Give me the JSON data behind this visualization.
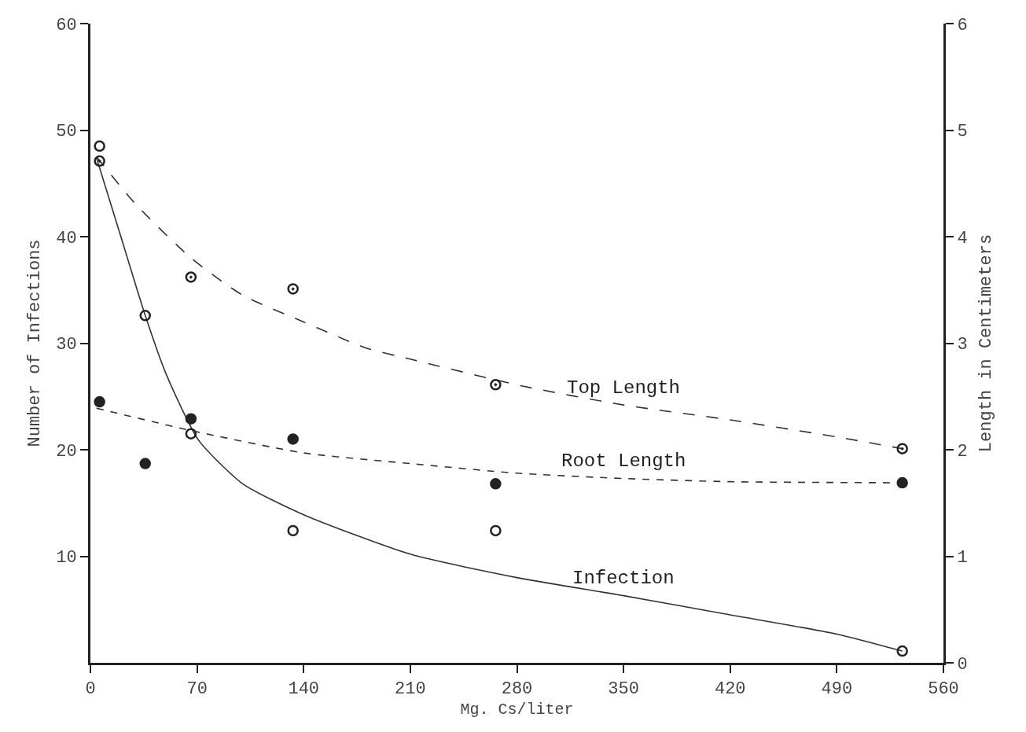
{
  "chart_data": {
    "type": "scatter",
    "xlabel": "Mg. Cs/liter",
    "ylabel": "Number of Infections",
    "y2label": "Length in Centimeters",
    "xlim": [
      0,
      560
    ],
    "xticks": [
      0,
      70,
      140,
      210,
      280,
      350,
      420,
      490,
      560
    ],
    "ylim": [
      0,
      60
    ],
    "yticks": [
      10,
      20,
      30,
      40,
      50,
      60
    ],
    "y2lim": [
      0,
      6
    ],
    "y2ticks": [
      0,
      1,
      2,
      3,
      4,
      5,
      6
    ],
    "grid": false,
    "legend": false,
    "series": [
      {
        "marker": "circle-open",
        "color": "#222222",
        "x": [
          6,
          36,
          66,
          133,
          266,
          533
        ],
        "values": [
          48.5,
          32.6,
          21.5,
          12.4,
          12.4,
          1.1
        ]
      },
      {
        "marker": "circle-open-dot",
        "color": "#222222",
        "axis": "y2",
        "x": [
          6,
          66,
          133,
          266,
          533
        ],
        "values": [
          4.71,
          3.62,
          3.51,
          2.61,
          2.01
        ]
      },
      {
        "marker": "circle",
        "color": "#222222",
        "axis": "y2",
        "x": [
          6,
          36,
          66,
          133,
          266,
          533
        ],
        "values": [
          2.45,
          1.87,
          2.29,
          2.1,
          1.68,
          1.69
        ]
      },
      {
        "type": "line",
        "name": "Infection",
        "line_style": "solid",
        "color": "#333333",
        "x": [
          4,
          20,
          36,
          50,
          71,
          100,
          140,
          210,
          280,
          350,
          420,
          490,
          533
        ],
        "values": [
          47.4,
          40,
          32.6,
          27,
          20.9,
          16.8,
          13.9,
          10.2,
          8,
          6.3,
          4.5,
          2.7,
          1.1
        ]
      },
      {
        "type": "line",
        "name": "Top Length",
        "line_style": "longdash",
        "color": "#333333",
        "axis": "y2",
        "x": [
          4,
          30,
          66,
          100,
          140,
          180,
          210,
          283,
          350,
          420,
          490,
          533
        ],
        "values": [
          4.75,
          4.3,
          3.8,
          3.45,
          3.2,
          2.96,
          2.85,
          2.6,
          2.42,
          2.28,
          2.12,
          2.01
        ]
      },
      {
        "type": "line",
        "name": "Root Length",
        "line_style": "dashed",
        "color": "#333333",
        "axis": "y2",
        "x": [
          4,
          66,
          140,
          210,
          280,
          350,
          420,
          533
        ],
        "values": [
          2.39,
          2.18,
          1.97,
          1.87,
          1.78,
          1.73,
          1.7,
          1.69
        ]
      }
    ]
  }
}
